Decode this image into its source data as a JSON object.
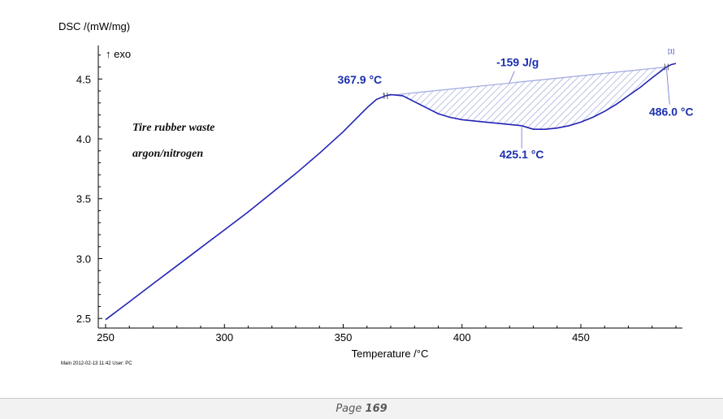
{
  "chart_data": {
    "type": "line",
    "ylabel": "DSC /(mW/mg)",
    "xlabel": "Temperature /°C",
    "exo_label": "↑ exo",
    "xlim": [
      250,
      490
    ],
    "ylim": [
      2.42,
      4.78
    ],
    "x_ticks": [
      250,
      300,
      350,
      400,
      450
    ],
    "y_ticks": [
      2.5,
      3.0,
      3.5,
      4.0,
      4.5
    ],
    "grid": false,
    "line_color": "#2323b4",
    "fill_color": "#9fa8e0",
    "series": [
      {
        "x": [
          250,
          260,
          270,
          280,
          290,
          300,
          310,
          320,
          330,
          340,
          350,
          355,
          360,
          364,
          367.9,
          370,
          375,
          380,
          385,
          390,
          395,
          400,
          405,
          410,
          415,
          420,
          425.1,
          430,
          435,
          440,
          445,
          450,
          455,
          460,
          465,
          470,
          475,
          480,
          484,
          486,
          488,
          490
        ],
        "y": [
          2.49,
          2.64,
          2.79,
          2.94,
          3.09,
          3.24,
          3.39,
          3.55,
          3.71,
          3.88,
          4.06,
          4.16,
          4.26,
          4.33,
          4.36,
          4.37,
          4.36,
          4.31,
          4.26,
          4.21,
          4.18,
          4.16,
          4.15,
          4.14,
          4.13,
          4.12,
          4.11,
          4.08,
          4.08,
          4.09,
          4.11,
          4.14,
          4.18,
          4.23,
          4.29,
          4.36,
          4.43,
          4.51,
          4.57,
          4.6,
          4.62,
          4.63
        ]
      }
    ],
    "baseline": {
      "x1": 367.9,
      "y1": 4.36,
      "x2": 486.0,
      "y2": 4.6
    },
    "annotations": [
      {
        "text": "367.9 °C",
        "x": 367.9,
        "y": 4.36
      },
      {
        "text": "425.1 °C",
        "x": 425.1,
        "y": 4.11
      },
      {
        "text": "486.0 °C",
        "x": 486.0,
        "y": 4.6
      },
      {
        "text": "-159 J/g",
        "x": 420,
        "y": 4.47
      }
    ],
    "sample_lines": [
      "Tire rubber waste",
      "argon/nitrogen"
    ],
    "marker_label": "[1]"
  },
  "meta_line": "Main   2012-02-13 11:42   User: PC",
  "footer": {
    "page_prefix": "Page",
    "page_number": "169"
  }
}
